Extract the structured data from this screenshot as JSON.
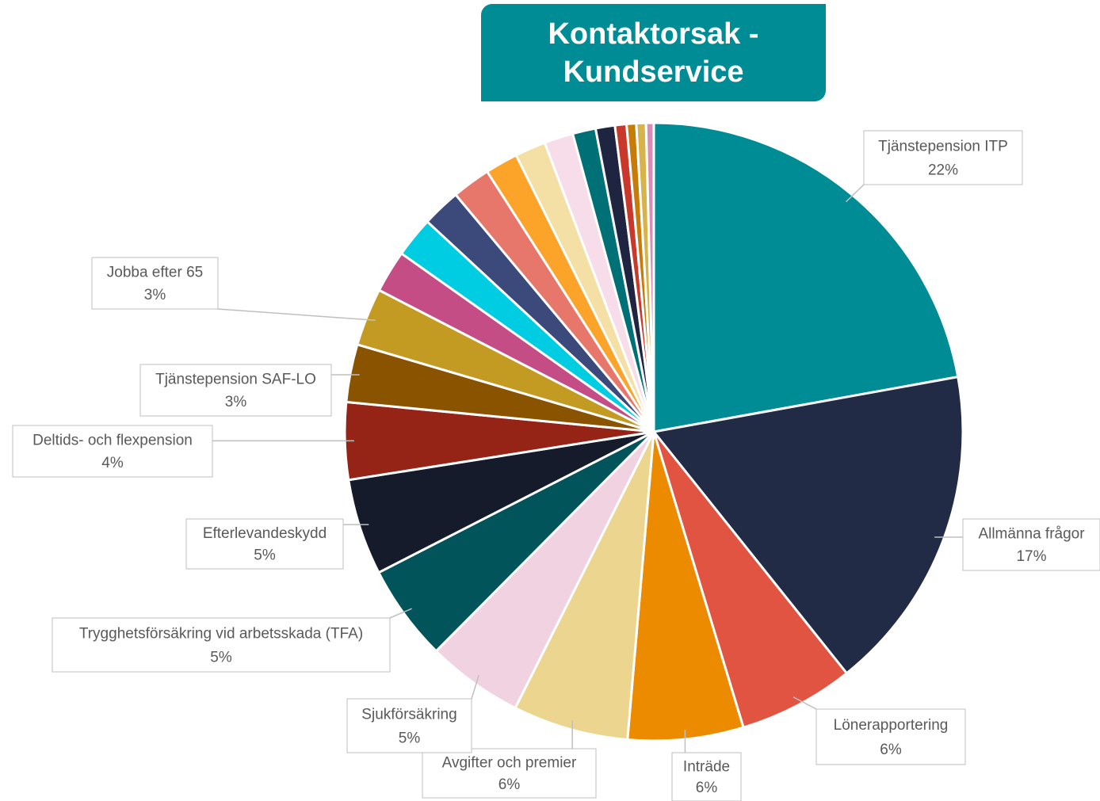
{
  "chart_data": {
    "type": "pie",
    "title": "Kontaktorsak - Kundservice",
    "categories": [
      "Tjänstepension ITP",
      "Allmänna frågor",
      "Lönerapportering",
      "Inträde",
      "Avgifter och premier",
      "Sjukförsäkring",
      "Trygghetsförsäkring vid arbetsskada (TFA)",
      "Efterlevandeskydd",
      "Deltids- och flexpension",
      "Tjänstepension SAF-LO",
      "Jobba efter 65",
      null,
      null,
      null,
      null,
      null,
      null,
      null,
      null,
      null,
      null,
      null,
      null,
      null
    ],
    "values": [
      22,
      17,
      6,
      6,
      6,
      5,
      5,
      5,
      4,
      3,
      3,
      2.2,
      2.1,
      2,
      2,
      1.7,
      1.6,
      1.5,
      1.2,
      1,
      0.6,
      0.5,
      0.5,
      0.4
    ],
    "value_labels": [
      "22%",
      "17%",
      "6%",
      "6%",
      "6%",
      "5%",
      "5%",
      "5%",
      "4%",
      "3%",
      "3%",
      null,
      null,
      null,
      null,
      null,
      null,
      null,
      null,
      null,
      null,
      null,
      null,
      null
    ],
    "colors": [
      "#008c95",
      "#212b45",
      "#e05441",
      "#ec8b00",
      "#ecd58e",
      "#f1d2e1",
      "#00545a",
      "#161b2b",
      "#952416",
      "#8a5300",
      "#c49b22",
      "#c44d86",
      "#00cde2",
      "#3b4a7a",
      "#e7776b",
      "#fca32a",
      "#f4dfa4",
      "#f7dce9",
      "#007077",
      "#1f2440",
      "#c8392b",
      "#c97b0a",
      "#d8b24a",
      "#d98cb8"
    ]
  }
}
